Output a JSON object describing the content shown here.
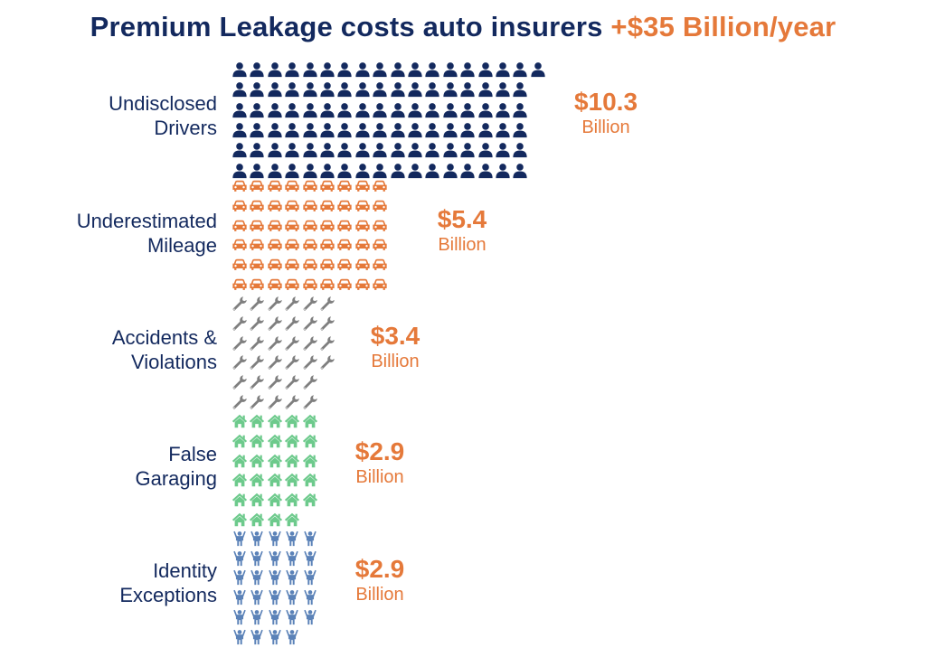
{
  "title": {
    "main": "Premium Leakage costs auto insurers",
    "accent": "+$35 Billion/year"
  },
  "colors": {
    "navy": "#13295e",
    "orange": "#e5793a",
    "gray": "#7f7f7f",
    "green": "#6dca8c",
    "blue": "#5b82b8"
  },
  "categories": [
    {
      "label_line1": "Undisclosed",
      "label_line2": "Drivers",
      "amount": "$10.3",
      "unit": "Billion",
      "icon": "person-icon",
      "icon_color": "#13295e",
      "icon_count": 103,
      "rows": [
        18,
        17,
        17,
        17,
        17,
        17
      ]
    },
    {
      "label_line1": "Underestimated",
      "label_line2": "Mileage",
      "amount": "$5.4",
      "unit": "Billion",
      "icon": "car-icon",
      "icon_color": "#e5793a",
      "icon_count": 54,
      "rows": [
        9,
        9,
        9,
        9,
        9,
        9
      ]
    },
    {
      "label_line1": "Accidents &",
      "label_line2": "Violations",
      "amount": "$3.4",
      "unit": "Billion",
      "icon": "wrench-icon",
      "icon_color": "#7f7f7f",
      "icon_count": 34,
      "rows": [
        6,
        6,
        6,
        6,
        5,
        5
      ]
    },
    {
      "label_line1": "False",
      "label_line2": "Garaging",
      "amount": "$2.9",
      "unit": "Billion",
      "icon": "house-icon",
      "icon_color": "#6dca8c",
      "icon_count": 29,
      "rows": [
        5,
        5,
        5,
        5,
        5,
        4
      ]
    },
    {
      "label_line1": "Identity",
      "label_line2": "Exceptions",
      "amount": "$2.9",
      "unit": "Billion",
      "icon": "person-arms-up-icon",
      "icon_color": "#5b82b8",
      "icon_count": 29,
      "rows": [
        5,
        5,
        5,
        5,
        5,
        4
      ]
    }
  ],
  "chart_data": {
    "type": "bar",
    "title": "Premium Leakage costs auto insurers +$35 Billion/year",
    "categories": [
      "Undisclosed Drivers",
      "Underestimated Mileage",
      "Accidents & Violations",
      "False Garaging",
      "Identity Exceptions"
    ],
    "values": [
      10.3,
      5.4,
      3.4,
      2.9,
      2.9
    ],
    "unit": "Billion USD",
    "xlabel": "",
    "ylabel": "",
    "orientation": "horizontal",
    "style": "pictogram (1 icon = $0.1 Billion)",
    "icon_counts": [
      103,
      54,
      34,
      29,
      29
    ],
    "grid": false,
    "legend": null
  }
}
